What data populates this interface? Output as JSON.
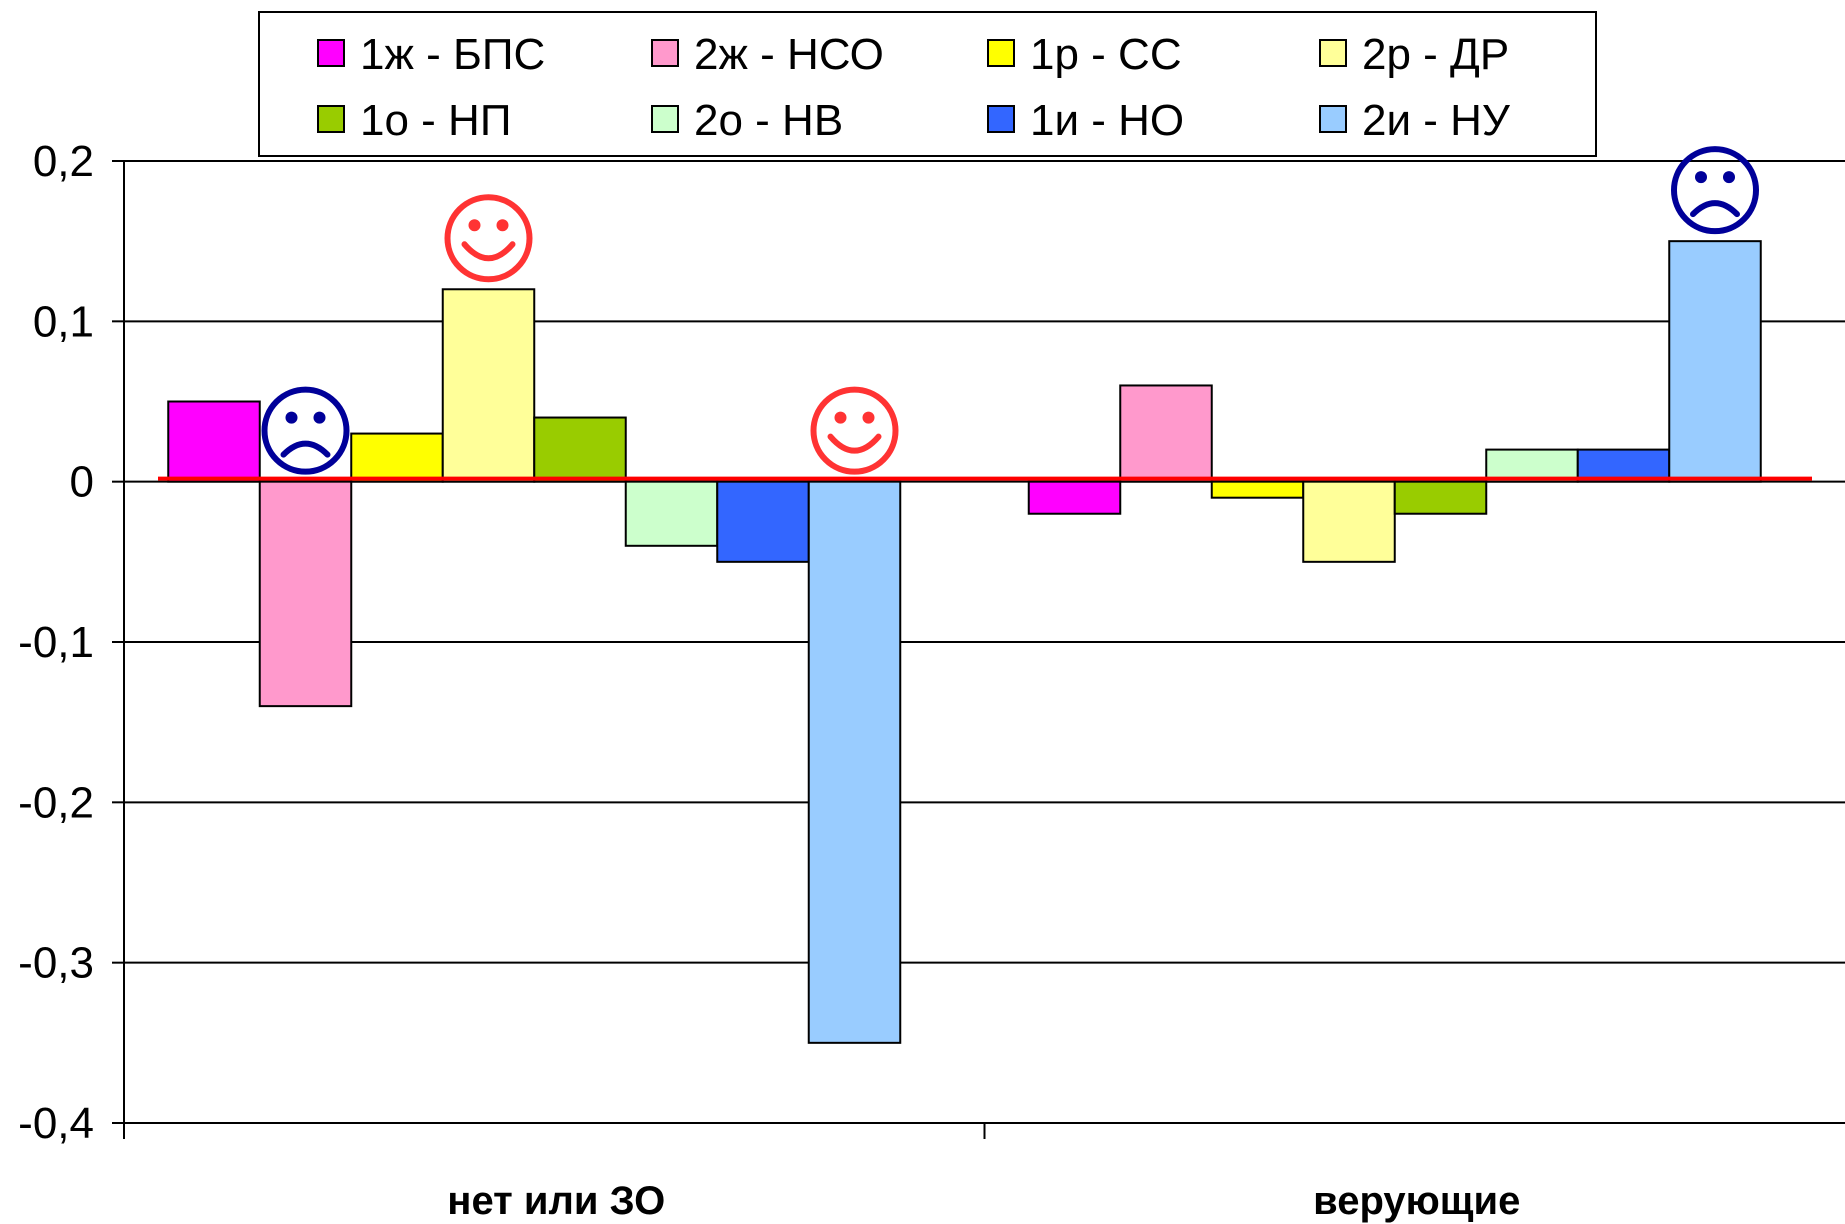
{
  "chart_data": {
    "type": "bar",
    "categories": [
      "нет или ЗО",
      "верующие"
    ],
    "series": [
      {
        "name": "1ж - БПС",
        "color": "#FF00FF",
        "values": [
          0.05,
          -0.02
        ]
      },
      {
        "name": "2ж - НСО",
        "color": "#FF99CC",
        "values": [
          -0.14,
          0.06
        ]
      },
      {
        "name": "1р - СС",
        "color": "#FFFF00",
        "values": [
          0.03,
          -0.01
        ]
      },
      {
        "name": "2р - ДР",
        "color": "#FFFF99",
        "values": [
          0.12,
          -0.05
        ]
      },
      {
        "name": "1о - НП",
        "color": "#99CC00",
        "values": [
          0.04,
          -0.02
        ]
      },
      {
        "name": "2о - НВ",
        "color": "#CCFFCC",
        "values": [
          -0.04,
          0.02
        ]
      },
      {
        "name": "1и - НО",
        "color": "#3366FF",
        "values": [
          -0.05,
          0.02
        ]
      },
      {
        "name": "2и - НУ",
        "color": "#99CCFF",
        "values": [
          -0.35,
          0.15
        ]
      }
    ],
    "yticks": [
      "0,2",
      "0,1",
      "0",
      "-0,1",
      "-0,2",
      "-0,3",
      "-0,4"
    ],
    "ytick_values": [
      0.2,
      0.1,
      0,
      -0.1,
      -0.2,
      -0.3,
      -0.4
    ],
    "ylim": [
      -0.4,
      0.2
    ],
    "grid": true,
    "legend_position": "top",
    "reference_line": {
      "value": 0,
      "color": "#FF0000"
    },
    "annotations": [
      {
        "type": "sad-face-icon",
        "color": "#000099",
        "category": 0,
        "series": 1
      },
      {
        "type": "smiley-face-icon",
        "color": "#FF3333",
        "category": 0,
        "series": 3
      },
      {
        "type": "smiley-face-icon",
        "color": "#FF3333",
        "category": 0,
        "series": 7
      },
      {
        "type": "sad-face-icon",
        "color": "#000099",
        "category": 1,
        "series": 7
      }
    ]
  }
}
